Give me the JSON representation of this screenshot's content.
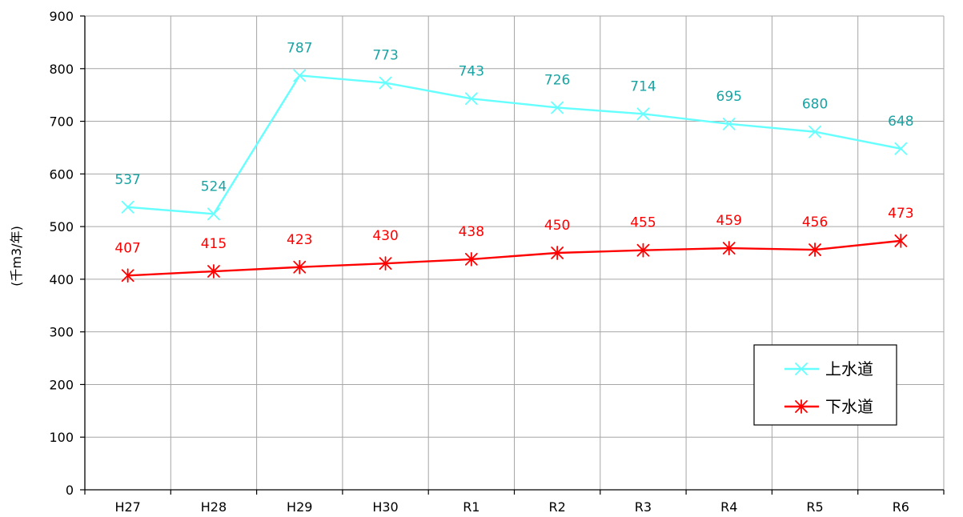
{
  "chart_data": {
    "type": "line",
    "categories": [
      "H27",
      "H28",
      "H29",
      "H30",
      "R1",
      "R2",
      "R3",
      "R4",
      "R5",
      "R6"
    ],
    "ylabel": "(千m3/年)",
    "ylim": [
      0,
      900
    ],
    "yticks": [
      0,
      100,
      200,
      300,
      400,
      500,
      600,
      700,
      800,
      900
    ],
    "grid": true,
    "legend": "bottom-right",
    "series": [
      {
        "name": "上水道",
        "marker": "x",
        "color": "#66ffff",
        "label_color": "#1aa3a3",
        "values": [
          537,
          524,
          787,
          773,
          743,
          726,
          714,
          695,
          680,
          648
        ]
      },
      {
        "name": "下水道",
        "marker": "asterisk",
        "color": "#ff0000",
        "label_color": "#ff0000",
        "values": [
          407,
          415,
          423,
          430,
          438,
          450,
          455,
          459,
          456,
          473
        ]
      }
    ]
  }
}
